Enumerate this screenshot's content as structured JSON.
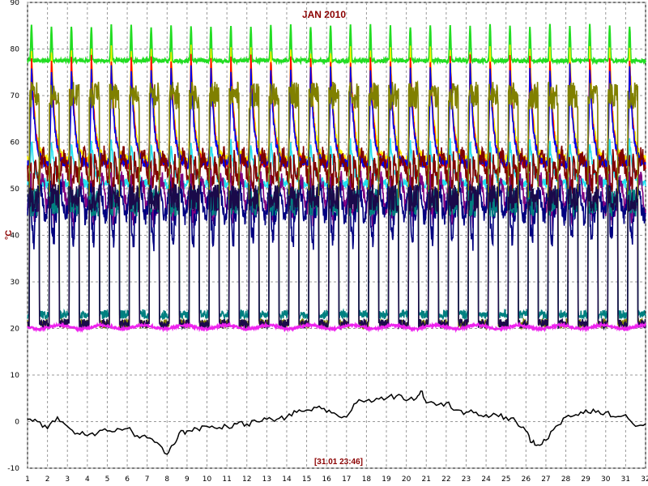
{
  "chart_data": {
    "type": "line",
    "title": "JAN 2010",
    "ylabel": "°C",
    "timestamp": "[31.01 23:46]",
    "xlim": [
      1,
      32
    ],
    "ylim": [
      -10,
      90
    ],
    "grid": true,
    "x_ticks": [
      1,
      2,
      3,
      4,
      5,
      6,
      7,
      8,
      9,
      10,
      11,
      12,
      13,
      14,
      15,
      16,
      17,
      18,
      19,
      20,
      21,
      22,
      23,
      24,
      25,
      26,
      27,
      28,
      29,
      30,
      31,
      32
    ],
    "y_ticks": [
      -10,
      0,
      10,
      20,
      30,
      40,
      50,
      60,
      70,
      80,
      90
    ],
    "colors": {
      "title": "#8b0000",
      "ylabel": "#8b0000",
      "timestamp": "#8b0000",
      "grid": "#999999"
    },
    "series": [
      {
        "color": "#22dd22",
        "base": 77.5,
        "peak": 85,
        "pattern": "spike"
      },
      {
        "color": "#ffee00",
        "base": 56,
        "peak": 80,
        "pattern": "peak"
      },
      {
        "color": "#ff0000",
        "base": 55,
        "peak": 78,
        "pattern": "peak"
      },
      {
        "color": "#0000ee",
        "base": 55,
        "peak": 76,
        "pattern": "peak"
      },
      {
        "color": "#22e0f0",
        "base": 51,
        "peak": 60,
        "pattern": "peak"
      },
      {
        "color": "#800000",
        "base": 55,
        "peak": 59,
        "pattern": "wavy"
      },
      {
        "color": "#800080",
        "base": 49,
        "peak": 54,
        "pattern": "wavy"
      },
      {
        "color": "#000080",
        "base": 47,
        "peak": 52,
        "pattern": "wavy"
      },
      {
        "color": "#808000",
        "base": 21,
        "peak": 70,
        "pattern": "square"
      },
      {
        "color": "#008080",
        "base": 23,
        "peak": 47,
        "pattern": "square"
      },
      {
        "color": "#1a0a4a",
        "base": 21,
        "peak": 48,
        "pattern": "square"
      },
      {
        "color": "#ee22ee",
        "base": 20.3,
        "peak": 21,
        "pattern": "flat"
      }
    ],
    "outdoor_series": {
      "color": "#000000",
      "points": [
        [
          1.0,
          0.5
        ],
        [
          1.5,
          0.0
        ],
        [
          2.0,
          -1.5
        ],
        [
          2.5,
          1.0
        ],
        [
          3.0,
          -1.0
        ],
        [
          3.5,
          -2.5
        ],
        [
          4.0,
          -3.0
        ],
        [
          4.5,
          -2.5
        ],
        [
          5.0,
          -2.0
        ],
        [
          5.5,
          -1.5
        ],
        [
          6.0,
          -1.5
        ],
        [
          6.5,
          -3.0
        ],
        [
          7.0,
          -3.5
        ],
        [
          7.5,
          -4.5
        ],
        [
          8.0,
          -7.0
        ],
        [
          8.3,
          -5.0
        ],
        [
          8.6,
          -2.5
        ],
        [
          9.0,
          -2.0
        ],
        [
          9.5,
          -1.5
        ],
        [
          10.0,
          -1.0
        ],
        [
          10.5,
          -1.5
        ],
        [
          11.0,
          -1.0
        ],
        [
          11.5,
          -0.5
        ],
        [
          12.0,
          -0.5
        ],
        [
          12.5,
          0.0
        ],
        [
          13.0,
          0.5
        ],
        [
          13.5,
          0.5
        ],
        [
          14.0,
          1.0
        ],
        [
          14.5,
          2.0
        ],
        [
          15.0,
          2.5
        ],
        [
          15.5,
          3.0
        ],
        [
          16.0,
          2.0
        ],
        [
          16.5,
          1.5
        ],
        [
          17.0,
          1.0
        ],
        [
          17.5,
          4.0
        ],
        [
          18.0,
          4.5
        ],
        [
          18.5,
          5.0
        ],
        [
          19.0,
          5.0
        ],
        [
          19.5,
          5.5
        ],
        [
          20.0,
          4.5
        ],
        [
          20.5,
          5.0
        ],
        [
          20.8,
          6.5
        ],
        [
          21.0,
          4.0
        ],
        [
          21.5,
          3.5
        ],
        [
          22.0,
          4.0
        ],
        [
          22.5,
          2.5
        ],
        [
          23.0,
          2.0
        ],
        [
          23.5,
          2.0
        ],
        [
          24.0,
          1.5
        ],
        [
          24.5,
          1.5
        ],
        [
          25.0,
          1.0
        ],
        [
          25.5,
          0.0
        ],
        [
          26.0,
          -2.0
        ],
        [
          26.3,
          -4.5
        ],
        [
          26.6,
          -5.0
        ],
        [
          27.0,
          -4.0
        ],
        [
          27.5,
          -1.0
        ],
        [
          28.0,
          1.0
        ],
        [
          28.5,
          1.5
        ],
        [
          29.0,
          2.5
        ],
        [
          29.5,
          2.0
        ],
        [
          30.0,
          2.0
        ],
        [
          30.5,
          1.0
        ],
        [
          31.0,
          1.5
        ],
        [
          31.5,
          -1.0
        ],
        [
          32.0,
          -0.5
        ]
      ]
    }
  }
}
